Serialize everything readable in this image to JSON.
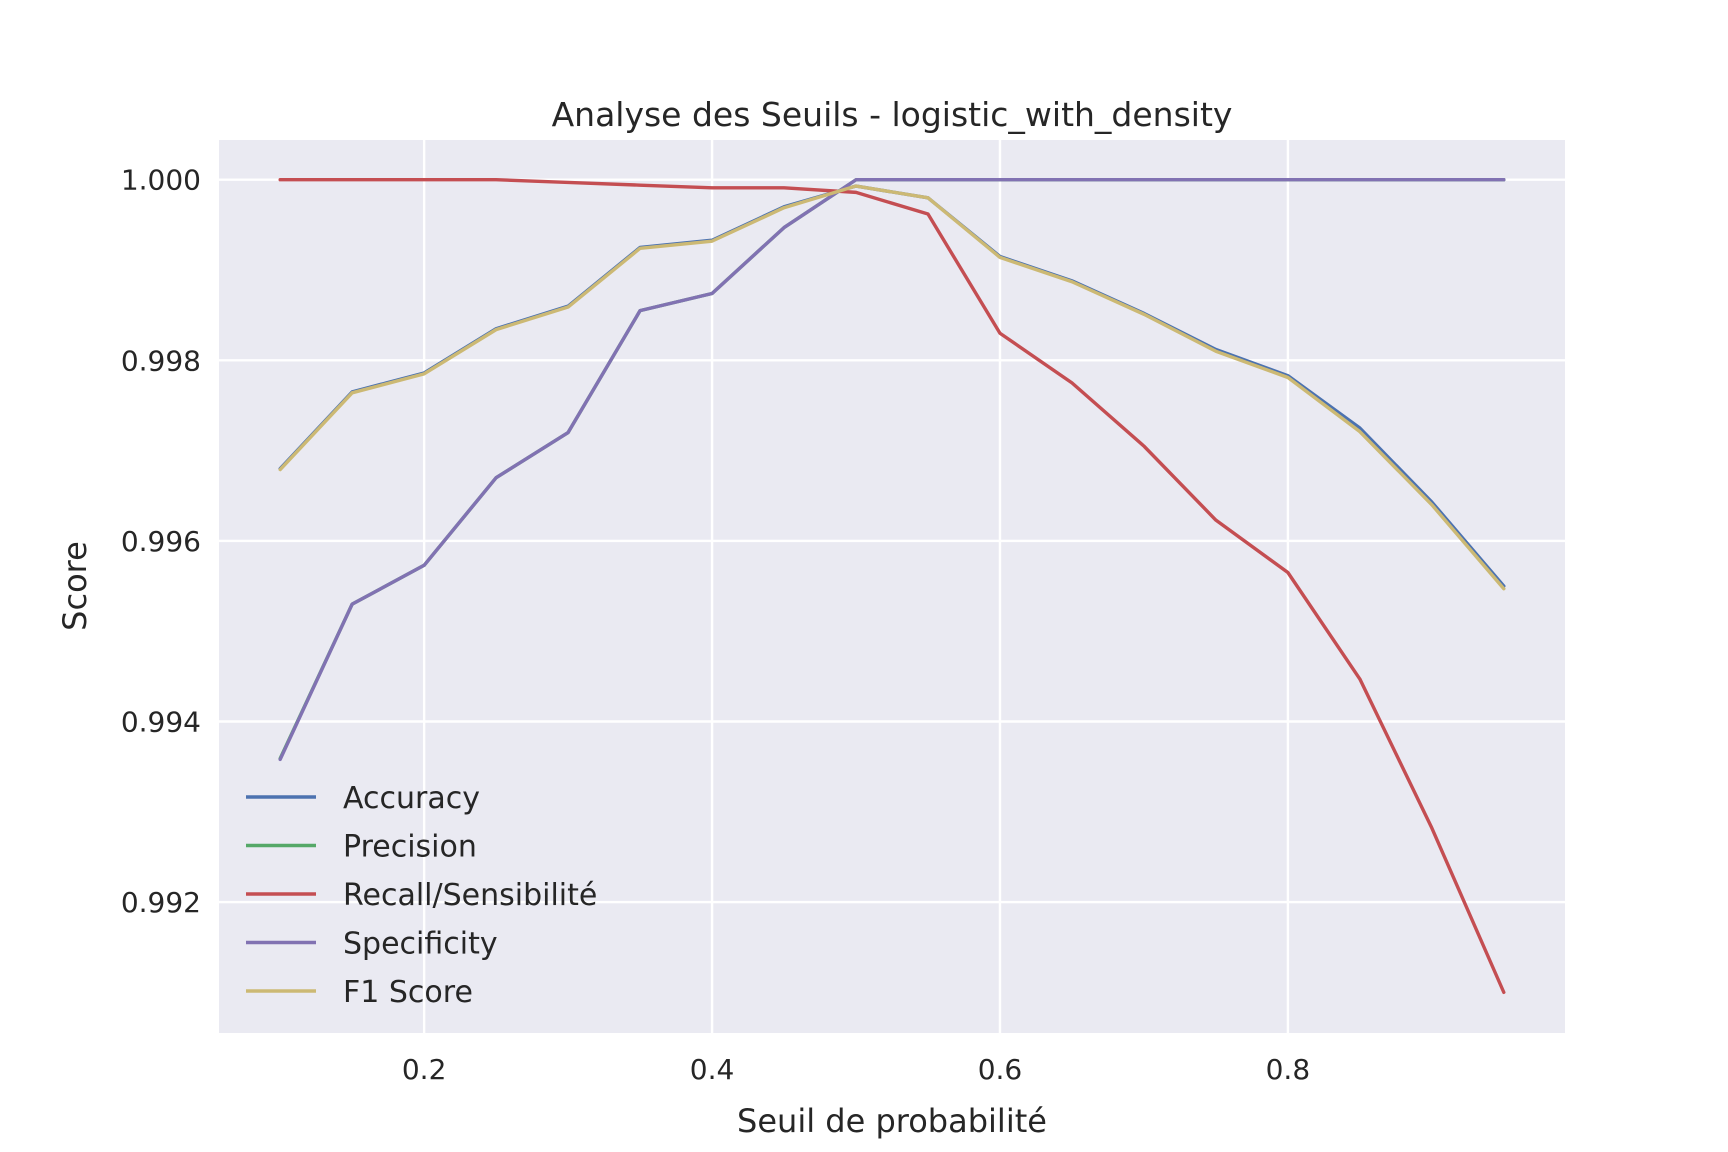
{
  "chart_data": {
    "type": "line",
    "title": "Analyse des Seuils - logistic_with_density",
    "xlabel": "Seuil de probabilité",
    "ylabel": "Score",
    "xlim": [
      0.0575,
      0.9925
    ],
    "ylim": [
      0.99055,
      1.00044
    ],
    "xticks": [
      0.2,
      0.4,
      0.6,
      0.8
    ],
    "xtick_labels": [
      "0.2",
      "0.4",
      "0.6",
      "0.8"
    ],
    "yticks": [
      0.992,
      0.994,
      0.996,
      0.998,
      1.0
    ],
    "ytick_labels": [
      "0.992",
      "0.994",
      "0.996",
      "0.998",
      "1.000"
    ],
    "grid": true,
    "legend_position": "lower-left",
    "x": [
      0.1,
      0.15,
      0.2,
      0.25,
      0.3,
      0.35,
      0.4,
      0.45,
      0.5,
      0.55,
      0.6,
      0.65,
      0.7,
      0.75,
      0.8,
      0.85,
      0.9,
      0.95
    ],
    "series": [
      {
        "name": "Accuracy",
        "color": "#4c72b0",
        "values": [
          0.9968,
          0.99765,
          0.99786,
          0.99835,
          0.9986,
          0.99925,
          0.99933,
          0.9997,
          0.99993,
          0.9998,
          0.99915,
          0.99888,
          0.99852,
          0.99812,
          0.99783,
          0.99725,
          0.99643,
          0.9955
        ]
      },
      {
        "name": "Precision",
        "color": "#55a868",
        "values": [
          0.99359,
          0.9953,
          0.99573,
          0.9967,
          0.9972,
          0.99855,
          0.99874,
          0.99947,
          1.0,
          1.0,
          1.0,
          1.0,
          1.0,
          1.0,
          1.0,
          1.0,
          1.0,
          1.0
        ]
      },
      {
        "name": "Recall/Sensibilité",
        "color": "#c44e52",
        "values": [
          1.0,
          1.0,
          1.0,
          1.0,
          0.99997,
          0.99994,
          0.99991,
          0.99991,
          0.99986,
          0.99962,
          0.9983,
          0.99775,
          0.99705,
          0.99623,
          0.99565,
          0.99447,
          0.99282,
          0.991
        ]
      },
      {
        "name": "Specificity",
        "color": "#8172b2",
        "values": [
          0.99358,
          0.9953,
          0.99573,
          0.9967,
          0.9972,
          0.99855,
          0.99874,
          0.99947,
          1.0,
          1.0,
          1.0,
          1.0,
          1.0,
          1.0,
          1.0,
          1.0,
          1.0,
          1.0
        ]
      },
      {
        "name": "F1 Score",
        "color": "#ccb974",
        "values": [
          0.99679,
          0.99764,
          0.99785,
          0.99834,
          0.99859,
          0.99924,
          0.99932,
          0.99969,
          0.99993,
          0.9998,
          0.99914,
          0.99887,
          0.99851,
          0.9981,
          0.99781,
          0.99721,
          0.9964,
          0.99547
        ]
      }
    ]
  }
}
